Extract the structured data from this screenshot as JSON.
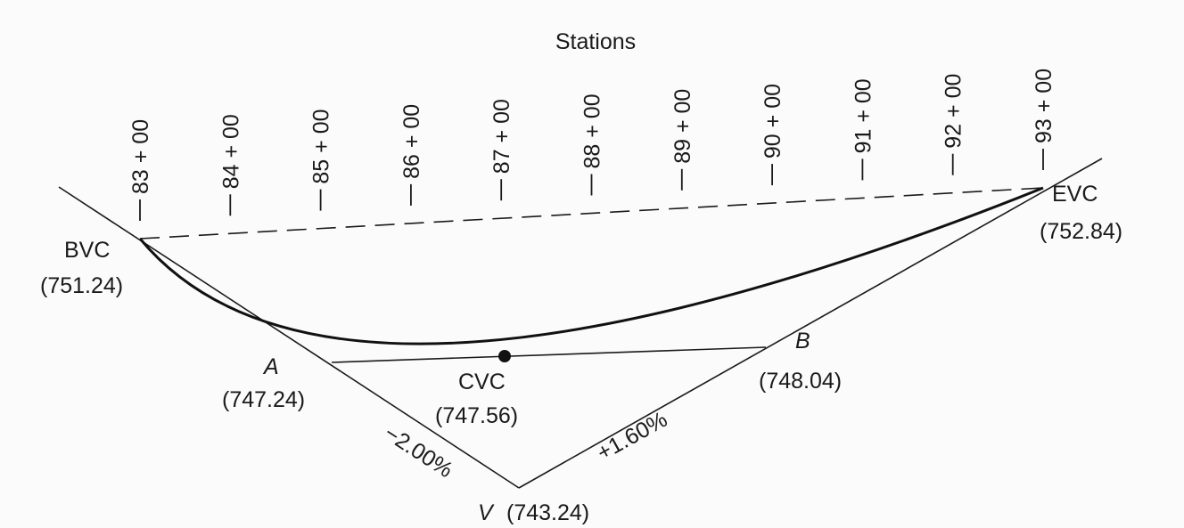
{
  "header": {
    "title": "Stations"
  },
  "stations": [
    "83 + 00",
    "84 + 00",
    "85 + 00",
    "86 + 00",
    "87 + 00",
    "88 + 00",
    "89 + 00",
    "90 + 00",
    "91 + 00",
    "92 + 00",
    "93 + 00"
  ],
  "points": {
    "bvc": {
      "label": "BVC",
      "elev": "(751.24)"
    },
    "evc": {
      "label": "EVC",
      "elev": "(752.84)"
    },
    "a": {
      "label": "A",
      "elev": "(747.24)"
    },
    "b": {
      "label": "B",
      "elev": "(748.04)"
    },
    "cvc": {
      "label": "CVC",
      "elev": "(747.56)"
    },
    "v": {
      "label": "V",
      "elev": "(743.24)"
    }
  },
  "grades": {
    "left": "−2.00%",
    "right": "+1.60%"
  }
}
